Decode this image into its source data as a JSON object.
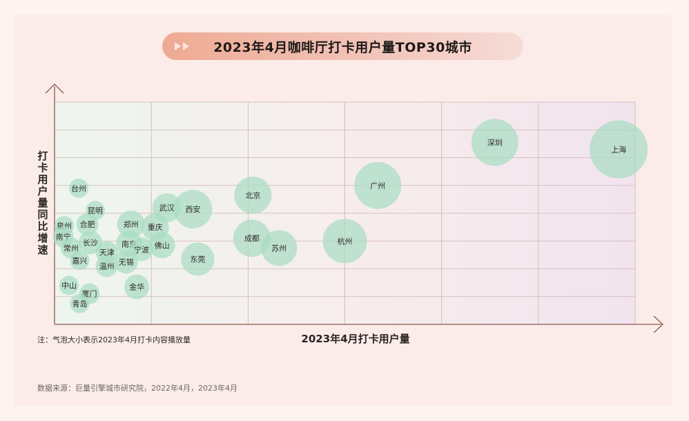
{
  "title": "2023年4月咖啡厅打卡用户量TOP30城市",
  "note": "注：气泡大小表示2023年4月打卡内容播放量",
  "source": "数据来源：巨量引擎城市研究院，2022年4月，2023年4月",
  "colors": {
    "bubble": "#a9dcc4",
    "grid": "#cdb3af",
    "axis": "#8a5a4f",
    "title_bg": "#eeaa93"
  },
  "chart_data": {
    "type": "scatter",
    "title": "2023年4月咖啡厅打卡用户量TOP30城市",
    "xlabel": "2023年4月打卡用户量",
    "ylabel": "打卡用户量同比增速",
    "xlim": [
      0,
      6
    ],
    "ylim": [
      0,
      8
    ],
    "grid": true,
    "legend": "none",
    "size_meaning": "气泡大小表示2023年4月打卡内容播放量",
    "points": [
      {
        "name": "上海",
        "x": 5.83,
        "y": 6.3,
        "size": 42
      },
      {
        "name": "深圳",
        "x": 4.55,
        "y": 6.55,
        "size": 34
      },
      {
        "name": "广州",
        "x": 3.34,
        "y": 5.0,
        "size": 34
      },
      {
        "name": "北京",
        "x": 2.05,
        "y": 4.65,
        "size": 27
      },
      {
        "name": "杭州",
        "x": 3.0,
        "y": 3.0,
        "size": 32
      },
      {
        "name": "成都",
        "x": 2.04,
        "y": 3.1,
        "size": 27
      },
      {
        "name": "苏州",
        "x": 2.32,
        "y": 2.75,
        "size": 26
      },
      {
        "name": "西安",
        "x": 1.43,
        "y": 4.15,
        "size": 28
      },
      {
        "name": "武汉",
        "x": 1.16,
        "y": 4.2,
        "size": 21
      },
      {
        "name": "东莞",
        "x": 1.48,
        "y": 2.35,
        "size": 24
      },
      {
        "name": "重庆",
        "x": 1.04,
        "y": 3.5,
        "size": 20
      },
      {
        "name": "佛山",
        "x": 1.11,
        "y": 2.85,
        "size": 19
      },
      {
        "name": "郑州",
        "x": 0.79,
        "y": 3.6,
        "size": 20
      },
      {
        "name": "南京",
        "x": 0.77,
        "y": 2.9,
        "size": 19
      },
      {
        "name": "宁波",
        "x": 0.9,
        "y": 2.7,
        "size": 17
      },
      {
        "name": "金华",
        "x": 0.85,
        "y": 1.35,
        "size": 18
      },
      {
        "name": "无锡",
        "x": 0.74,
        "y": 2.25,
        "size": 17
      },
      {
        "name": "温州",
        "x": 0.54,
        "y": 2.1,
        "size": 16
      },
      {
        "name": "天津",
        "x": 0.54,
        "y": 2.6,
        "size": 16
      },
      {
        "name": "长沙",
        "x": 0.37,
        "y": 2.95,
        "size": 17
      },
      {
        "name": "合肥",
        "x": 0.34,
        "y": 3.6,
        "size": 16
      },
      {
        "name": "昆明",
        "x": 0.42,
        "y": 4.1,
        "size": 14
      },
      {
        "name": "台州",
        "x": 0.25,
        "y": 4.9,
        "size": 14
      },
      {
        "name": "泉州",
        "x": 0.1,
        "y": 3.55,
        "size": 14
      },
      {
        "name": "南宁",
        "x": 0.09,
        "y": 3.15,
        "size": 15
      },
      {
        "name": "常州",
        "x": 0.17,
        "y": 2.75,
        "size": 15
      },
      {
        "name": "嘉兴",
        "x": 0.26,
        "y": 2.3,
        "size": 14
      },
      {
        "name": "中山",
        "x": 0.15,
        "y": 1.4,
        "size": 14
      },
      {
        "name": "厦门",
        "x": 0.36,
        "y": 1.1,
        "size": 15
      },
      {
        "name": "青岛",
        "x": 0.26,
        "y": 0.75,
        "size": 14
      }
    ]
  }
}
